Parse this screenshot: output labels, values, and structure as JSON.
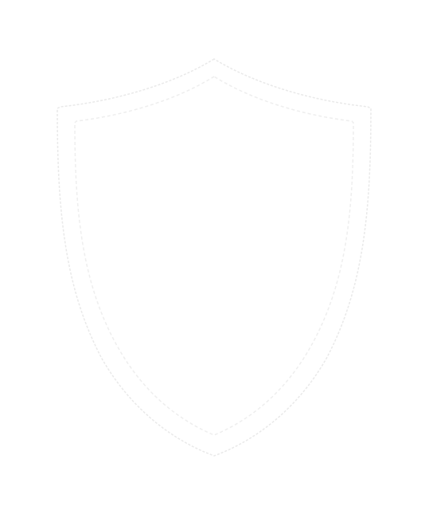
{
  "icon": {
    "name": "shield-icon",
    "fill_color": "#ffffff",
    "outline_color": "#e9e9e9",
    "inner_outline_color": "#eeeeee",
    "background_color": "#ffffff"
  }
}
